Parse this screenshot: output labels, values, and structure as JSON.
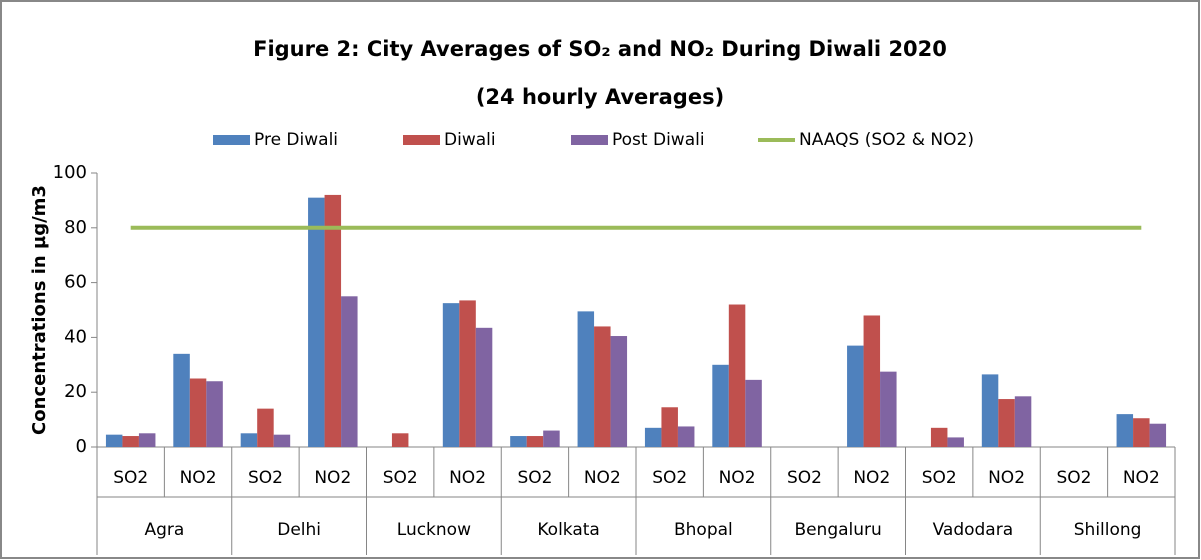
{
  "chart_data": {
    "type": "bar",
    "title": "Figure 2: City Averages of SO₂ and NO₂ During Diwali 2020",
    "subtitle": "(24 hourly Averages)",
    "y_label": "Concentrations in µg/m3",
    "categories": [
      "SO2",
      "NO2",
      "SO2",
      "NO2",
      "SO2",
      "NO2",
      "SO2",
      "NO2",
      "SO2",
      "NO2",
      "SO2",
      "NO2",
      "SO2",
      "NO2",
      "SO2",
      "NO2"
    ],
    "category_groups": [
      "Agra",
      "Delhi",
      "Lucknow",
      "Kolkata",
      "Bhopal",
      "Bengaluru",
      "Vadodara",
      "Shillong"
    ],
    "series": [
      {
        "name": "Pre Diwali",
        "color": "#4f81bd",
        "values": [
          4.5,
          34,
          5,
          91,
          null,
          52.5,
          4,
          49.5,
          7,
          30,
          null,
          37,
          null,
          26.5,
          null,
          12
        ]
      },
      {
        "name": "Diwali",
        "color": "#c0504d",
        "values": [
          4,
          25,
          14,
          92,
          5,
          53.5,
          4,
          44,
          14.5,
          52,
          null,
          48,
          7,
          17.5,
          null,
          10.5
        ]
      },
      {
        "name": "Post Diwali",
        "color": "#8064a2",
        "values": [
          5,
          24,
          4.5,
          55,
          null,
          43.5,
          6,
          40.5,
          7.5,
          24.5,
          null,
          27.5,
          3.5,
          18.5,
          null,
          8.5
        ]
      },
      {
        "name": "NAAQS (SO2 & NO2)",
        "color": "#9bbb59",
        "type": "line",
        "values": [
          80,
          80,
          80,
          80,
          80,
          80,
          80,
          80,
          80,
          80,
          80,
          80,
          80,
          80,
          80,
          80
        ]
      }
    ],
    "ylim": [
      0,
      100
    ],
    "yticks": [
      0,
      20,
      40,
      60,
      80,
      100
    ],
    "grid": false,
    "legend": "top"
  }
}
